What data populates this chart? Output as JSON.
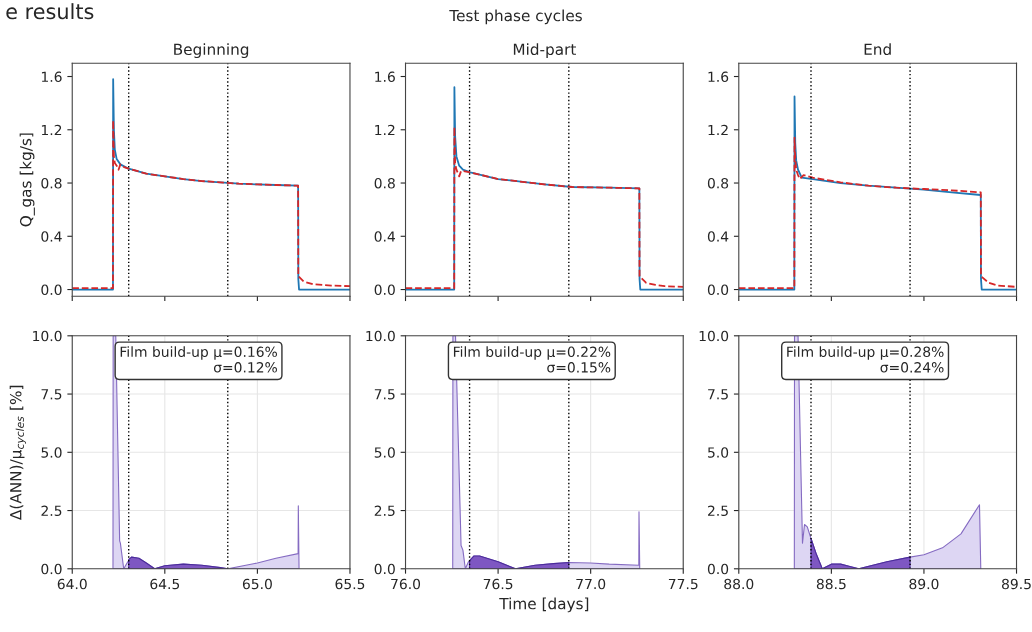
{
  "chart_data": [
    {
      "type": "line",
      "title": "Beginning",
      "ylabel": "Q_gas [kg/s]",
      "annotations": [
        "e results",
        "Test phase cycles"
      ],
      "xlim": [
        64.0,
        65.5
      ],
      "xticks": [
        64,
        64.5,
        65,
        65.5
      ],
      "ylim": [
        -0.05,
        1.7
      ],
      "yticks": [
        {
          "value": 0,
          "label": "0.0"
        },
        0.4,
        0.8,
        1.2,
        1.6
      ],
      "tick_labels": "y",
      "grid": false,
      "legend": false,
      "ref_lines": [
        {
          "axis": "x",
          "value": 64.305,
          "line_style": "dotted",
          "color": "#000000"
        },
        {
          "axis": "x",
          "value": 64.84,
          "line_style": "dotted",
          "color": "#000000"
        }
      ],
      "series": [
        {
          "type": "line",
          "color": "#1f77b4",
          "line_style": "solid",
          "x": [
            64.0,
            64.22,
            64.221,
            64.225,
            64.23,
            64.24,
            64.26,
            64.3,
            64.4,
            64.5,
            64.6,
            64.7,
            64.8,
            64.9,
            65.0,
            65.1,
            65.22,
            65.221,
            65.225,
            65.5
          ],
          "values": [
            0.0,
            0.0,
            1.58,
            1.2,
            1.05,
            0.98,
            0.94,
            0.91,
            0.87,
            0.85,
            0.83,
            0.815,
            0.805,
            0.795,
            0.79,
            0.785,
            0.78,
            0.08,
            0.0,
            0.0
          ]
        },
        {
          "type": "line",
          "color": "#d62728",
          "line_style": "dashed",
          "x": [
            64.0,
            64.22,
            64.221,
            64.225,
            64.23,
            64.24,
            64.25,
            64.26,
            64.28,
            64.3,
            64.4,
            64.5,
            64.6,
            64.7,
            64.8,
            64.9,
            65.0,
            65.1,
            65.22,
            65.221,
            65.25,
            65.3,
            65.4,
            65.5
          ],
          "values": [
            0.01,
            0.01,
            1.27,
            1.0,
            0.95,
            0.93,
            0.9,
            0.94,
            0.92,
            0.91,
            0.87,
            0.85,
            0.83,
            0.815,
            0.805,
            0.795,
            0.79,
            0.785,
            0.78,
            0.1,
            0.06,
            0.04,
            0.03,
            0.025
          ]
        }
      ]
    },
    {
      "type": "line",
      "title": "Mid-part",
      "xlim": [
        76.0,
        77.5
      ],
      "xticks": [
        76,
        76.5,
        77,
        77.5
      ],
      "ylim": [
        -0.05,
        1.7
      ],
      "yticks": [
        {
          "value": 0,
          "label": "0.0"
        },
        0.4,
        0.8,
        1.2,
        1.6
      ],
      "tick_labels": "y",
      "grid": false,
      "legend": false,
      "ref_lines": [
        {
          "axis": "x",
          "value": 76.346,
          "line_style": "dotted",
          "color": "#000000"
        },
        {
          "axis": "x",
          "value": 76.882,
          "line_style": "dotted",
          "color": "#000000"
        }
      ],
      "series": [
        {
          "type": "line",
          "color": "#1f77b4",
          "line_style": "solid",
          "x": [
            76.0,
            76.263,
            76.264,
            76.268,
            76.275,
            76.29,
            76.31,
            76.35,
            76.5,
            76.75,
            76.9,
            77.1,
            77.263,
            77.264,
            77.268,
            77.5
          ],
          "values": [
            0.0,
            0.0,
            1.52,
            1.15,
            1.0,
            0.93,
            0.9,
            0.88,
            0.83,
            0.79,
            0.77,
            0.765,
            0.76,
            0.08,
            0.0,
            0.0
          ]
        },
        {
          "type": "line",
          "color": "#d62728",
          "line_style": "dashed",
          "x": [
            76.0,
            76.263,
            76.264,
            76.268,
            76.275,
            76.29,
            76.3,
            76.31,
            76.35,
            76.5,
            76.75,
            76.9,
            77.1,
            77.263,
            77.264,
            77.3,
            77.35,
            77.4,
            77.5
          ],
          "values": [
            0.01,
            0.01,
            1.22,
            0.95,
            0.9,
            0.85,
            0.89,
            0.89,
            0.88,
            0.83,
            0.79,
            0.77,
            0.765,
            0.76,
            0.1,
            0.05,
            0.035,
            0.025,
            0.02
          ]
        }
      ]
    },
    {
      "type": "line",
      "title": "End",
      "xlim": [
        88.0,
        89.5
      ],
      "xticks": [
        88,
        88.5,
        89,
        89.5
      ],
      "ylim": [
        -0.05,
        1.7
      ],
      "yticks": [
        {
          "value": 0,
          "label": "0.0"
        },
        0.4,
        0.8,
        1.2,
        1.6
      ],
      "tick_labels": "y",
      "grid": false,
      "legend": false,
      "ref_lines": [
        {
          "axis": "x",
          "value": 88.39,
          "line_style": "dotted",
          "color": "#000000"
        },
        {
          "axis": "x",
          "value": 88.925,
          "line_style": "dotted",
          "color": "#000000"
        }
      ],
      "series": [
        {
          "type": "line",
          "color": "#1f77b4",
          "line_style": "solid",
          "x": [
            88.0,
            88.3,
            88.301,
            88.305,
            88.31,
            88.32,
            88.34,
            88.4,
            88.55,
            88.7,
            88.85,
            89.0,
            89.15,
            89.307,
            89.308,
            89.312,
            89.5
          ],
          "values": [
            0.0,
            0.0,
            1.45,
            1.1,
            0.97,
            0.9,
            0.84,
            0.83,
            0.8,
            0.78,
            0.765,
            0.75,
            0.73,
            0.71,
            0.08,
            0.0,
            0.0
          ]
        },
        {
          "type": "line",
          "color": "#d62728",
          "line_style": "dashed",
          "x": [
            88.0,
            88.3,
            88.301,
            88.305,
            88.31,
            88.32,
            88.33,
            88.35,
            88.4,
            88.55,
            88.7,
            88.85,
            89.0,
            89.15,
            89.307,
            89.308,
            89.35,
            89.4,
            89.5
          ],
          "values": [
            0.01,
            0.01,
            1.14,
            0.98,
            0.9,
            0.86,
            0.83,
            0.86,
            0.84,
            0.805,
            0.78,
            0.765,
            0.755,
            0.745,
            0.73,
            0.1,
            0.05,
            0.03,
            0.02
          ]
        }
      ]
    },
    {
      "type": "area",
      "ylabel": "Δ(ANN)/μ$_{cycles}$ [%]",
      "annotations": [
        "Film build-up μ=0.16%\nσ=0.12%"
      ],
      "xlim": [
        64.0,
        65.5
      ],
      "xticks": [
        {
          "value": 64,
          "label": "64.0"
        },
        64.5,
        {
          "value": 65,
          "label": "65.0"
        },
        65.5
      ],
      "ylim": [
        0,
        10
      ],
      "yticks": [
        {
          "value": 0,
          "label": "0.0"
        },
        2.5,
        {
          "value": 5,
          "label": "5.0"
        },
        7.5,
        {
          "value": 10,
          "label": "10.0"
        }
      ],
      "grid": true,
      "legend": false,
      "ref_lines": [
        {
          "axis": "x",
          "value": 64.305,
          "line_style": "dotted",
          "color": "#000000"
        },
        {
          "axis": "x",
          "value": 64.84,
          "line_style": "dotted",
          "color": "#000000"
        }
      ],
      "series": [
        {
          "type": "area",
          "color": "#ddd6f3",
          "x": [
            64.22,
            64.221,
            64.235,
            64.256,
            64.26,
            64.278,
            64.3,
            64.32,
            64.36,
            64.4,
            64.445,
            64.5,
            64.6,
            64.7,
            64.8,
            64.84,
            65.0,
            65.1,
            65.22,
            65.221,
            65.225
          ],
          "values": [
            0.0,
            10.0,
            10.0,
            1.2,
            1.1,
            0.0,
            0.3,
            0.5,
            0.45,
            0.25,
            0.0,
            0.13,
            0.2,
            0.15,
            0.05,
            0.0,
            0.25,
            0.45,
            0.65,
            2.7,
            0.0
          ]
        },
        {
          "type": "area",
          "color": "#7e57c2",
          "x": [
            64.305,
            64.32,
            64.36,
            64.4,
            64.445,
            64.5,
            64.6,
            64.7,
            64.8,
            64.84
          ],
          "values": [
            0.4,
            0.5,
            0.45,
            0.25,
            0.0,
            0.13,
            0.2,
            0.15,
            0.05,
            0.0
          ]
        }
      ]
    },
    {
      "type": "area",
      "xlabel": "Time [days]",
      "annotations": [
        "Film build-up μ=0.22%\nσ=0.15%"
      ],
      "xlim": [
        76.0,
        77.5
      ],
      "xticks": [
        {
          "value": 76,
          "label": "76.0"
        },
        76.5,
        {
          "value": 77,
          "label": "77.0"
        },
        77.5
      ],
      "ylim": [
        0,
        10
      ],
      "yticks": [
        {
          "value": 0,
          "label": "0.0"
        },
        2.5,
        {
          "value": 5,
          "label": "5.0"
        },
        7.5,
        {
          "value": 10,
          "label": "10.0"
        }
      ],
      "grid": true,
      "legend": false,
      "ref_lines": [
        {
          "axis": "x",
          "value": 76.346,
          "line_style": "dotted",
          "color": "#000000"
        },
        {
          "axis": "x",
          "value": 76.882,
          "line_style": "dotted",
          "color": "#000000"
        }
      ],
      "series": [
        {
          "type": "area",
          "color": "#ddd6f3",
          "x": [
            76.255,
            76.256,
            76.27,
            76.3,
            76.31,
            76.323,
            76.34,
            76.37,
            76.4,
            76.5,
            76.594,
            76.7,
            76.8,
            76.882,
            77.0,
            77.1,
            77.26,
            77.261,
            77.265
          ],
          "values": [
            0.0,
            10.0,
            10.0,
            1.0,
            0.8,
            0.0,
            0.3,
            0.55,
            0.55,
            0.3,
            0.0,
            0.15,
            0.22,
            0.27,
            0.25,
            0.2,
            0.15,
            2.45,
            0.0
          ]
        },
        {
          "type": "area",
          "color": "#7e57c2",
          "x": [
            76.346,
            76.37,
            76.4,
            76.5,
            76.594,
            76.7,
            76.8,
            76.882
          ],
          "values": [
            0.35,
            0.55,
            0.55,
            0.3,
            0.0,
            0.15,
            0.22,
            0.27
          ]
        }
      ]
    },
    {
      "type": "area",
      "annotations": [
        "Film build-up μ=0.28%\nσ=0.24%"
      ],
      "xlim": [
        88.0,
        89.5
      ],
      "xticks": [
        {
          "value": 88,
          "label": "88.0"
        },
        88.5,
        {
          "value": 89,
          "label": "89.0"
        },
        89.5
      ],
      "ylim": [
        0,
        10
      ],
      "yticks": [
        {
          "value": 0,
          "label": "0.0"
        },
        2.5,
        {
          "value": 5,
          "label": "5.0"
        },
        7.5,
        {
          "value": 10,
          "label": "10.0"
        }
      ],
      "grid": true,
      "legend": false,
      "ref_lines": [
        {
          "axis": "x",
          "value": 88.39,
          "line_style": "dotted",
          "color": "#000000"
        },
        {
          "axis": "x",
          "value": 88.925,
          "line_style": "dotted",
          "color": "#000000"
        }
      ],
      "series": [
        {
          "type": "area",
          "color": "#ddd6f3",
          "x": [
            88.3,
            88.301,
            88.32,
            88.344,
            88.355,
            88.37,
            88.39,
            88.42,
            88.451,
            88.5,
            88.55,
            88.6,
            88.648,
            88.8,
            88.925,
            89.0,
            89.1,
            89.2,
            89.3,
            89.307
          ],
          "values": [
            0.0,
            10.0,
            10.0,
            1.1,
            1.9,
            1.8,
            1.3,
            0.6,
            0.0,
            0.2,
            0.2,
            0.1,
            0.0,
            0.3,
            0.5,
            0.6,
            0.9,
            1.5,
            2.75,
            0.0
          ]
        },
        {
          "type": "area",
          "color": "#7e57c2",
          "x": [
            88.39,
            88.42,
            88.451,
            88.5,
            88.55,
            88.6,
            88.648,
            88.8,
            88.925
          ],
          "values": [
            1.3,
            0.6,
            0.0,
            0.2,
            0.2,
            0.1,
            0.0,
            0.3,
            0.5
          ]
        }
      ]
    }
  ]
}
